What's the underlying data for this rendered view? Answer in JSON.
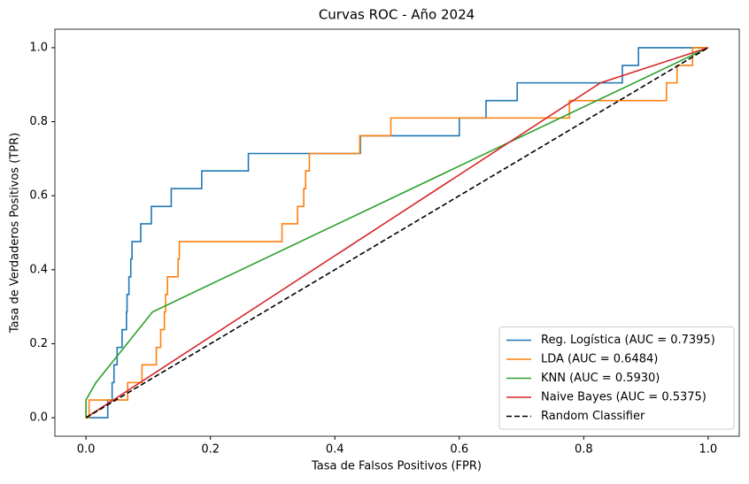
{
  "chart_data": {
    "type": "line",
    "title": "Curvas ROC - Año 2024",
    "xlabel": "Tasa de Falsos Positivos (FPR)",
    "ylabel": "Tasa de Verdaderos Positivos (TPR)",
    "xlim": [
      -0.05,
      1.05
    ],
    "ylim": [
      -0.05,
      1.05
    ],
    "xticks": [
      {
        "value": 0,
        "label": "0.0"
      },
      0.2,
      0.4,
      0.6,
      0.8,
      {
        "value": 1,
        "label": "1.0"
      }
    ],
    "yticks": [
      {
        "value": 0,
        "label": "0.0"
      },
      0.2,
      0.4,
      0.6,
      0.8,
      {
        "value": 1,
        "label": "1.0"
      }
    ],
    "grid": false,
    "legend": "lower right",
    "series": [
      {
        "name": "Reg. Logística (AUC = 0.7395)",
        "color": "#1f77b4",
        "dash": false,
        "x": [
          0,
          0.035,
          0.035,
          0.042,
          0.042,
          0.045,
          0.045,
          0.05,
          0.05,
          0.058,
          0.058,
          0.065,
          0.065,
          0.066,
          0.066,
          0.069,
          0.069,
          0.072,
          0.072,
          0.074,
          0.074,
          0.088,
          0.088,
          0.105,
          0.105,
          0.137,
          0.137,
          0.186,
          0.186,
          0.261,
          0.261,
          0.441,
          0.441,
          0.6,
          0.6,
          0.643,
          0.643,
          0.693,
          0.693,
          0.862,
          0.862,
          0.888,
          0.888,
          1
        ],
        "values": [
          0,
          0,
          0.048,
          0.048,
          0.095,
          0.095,
          0.143,
          0.143,
          0.19,
          0.19,
          0.238,
          0.238,
          0.286,
          0.286,
          0.333,
          0.333,
          0.381,
          0.381,
          0.429,
          0.429,
          0.476,
          0.476,
          0.524,
          0.524,
          0.571,
          0.571,
          0.619,
          0.619,
          0.667,
          0.667,
          0.714,
          0.714,
          0.762,
          0.762,
          0.81,
          0.81,
          0.857,
          0.857,
          0.905,
          0.905,
          0.952,
          0.952,
          1,
          1
        ]
      },
      {
        "name": "LDA (AUC = 0.6484)",
        "color": "#ff7f0e",
        "dash": false,
        "x": [
          0,
          0.005,
          0.005,
          0.067,
          0.067,
          0.09,
          0.09,
          0.113,
          0.113,
          0.12,
          0.12,
          0.126,
          0.126,
          0.128,
          0.128,
          0.131,
          0.131,
          0.148,
          0.148,
          0.15,
          0.15,
          0.315,
          0.315,
          0.34,
          0.34,
          0.35,
          0.35,
          0.353,
          0.353,
          0.359,
          0.359,
          0.44,
          0.44,
          0.49,
          0.49,
          0.777,
          0.777,
          0.933,
          0.933,
          0.95,
          0.95,
          0.975,
          0.975,
          1
        ],
        "values": [
          0,
          0,
          0.048,
          0.048,
          0.095,
          0.095,
          0.143,
          0.143,
          0.19,
          0.19,
          0.238,
          0.238,
          0.286,
          0.286,
          0.333,
          0.333,
          0.381,
          0.381,
          0.429,
          0.429,
          0.476,
          0.476,
          0.524,
          0.524,
          0.571,
          0.571,
          0.619,
          0.619,
          0.667,
          0.667,
          0.714,
          0.714,
          0.762,
          0.762,
          0.81,
          0.81,
          0.857,
          0.857,
          0.905,
          0.905,
          0.952,
          0.952,
          1,
          1
        ]
      },
      {
        "name": "KNN (AUC = 0.5930)",
        "color": "#2ca02c",
        "dash": false,
        "x": [
          0,
          0,
          0.016,
          0.107,
          1
        ],
        "values": [
          0,
          0.048,
          0.095,
          0.286,
          1
        ]
      },
      {
        "name": "Naive Bayes (AUC = 0.5375)",
        "color": "#d62728",
        "dash": false,
        "x": [
          0,
          0.827,
          1
        ],
        "values": [
          0,
          0.905,
          1
        ]
      },
      {
        "name": "Random Classifier",
        "color": "#000000",
        "dash": true,
        "x": [
          0,
          1
        ],
        "values": [
          0,
          1
        ]
      }
    ]
  }
}
